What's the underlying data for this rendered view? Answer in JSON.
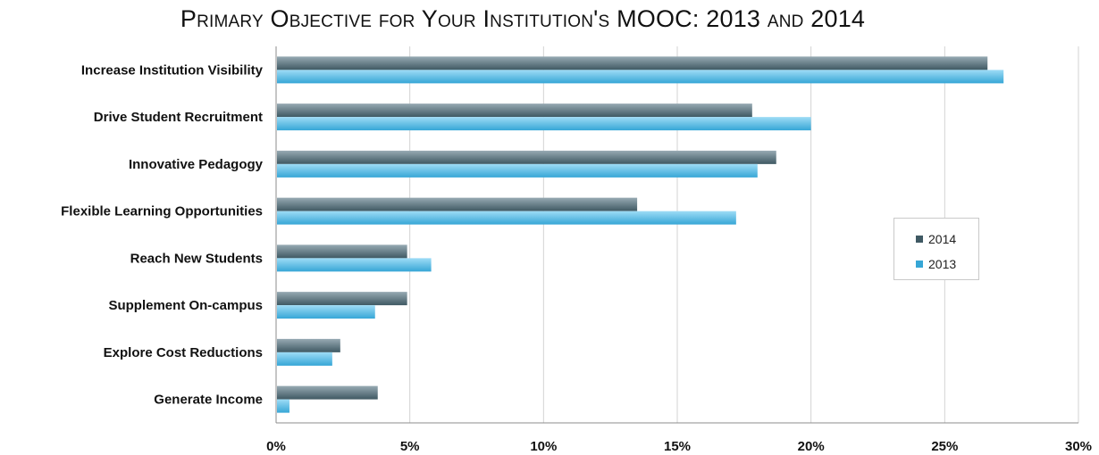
{
  "chart_data": {
    "type": "bar",
    "orientation": "horizontal",
    "title": "Primary Objective for Your Institution's MOOC: 2013 and 2014",
    "categories": [
      "Increase Institution Visibility",
      "Drive Student Recruitment",
      "Innovative Pedagogy",
      "Flexible Learning Opportunities",
      "Reach New Students",
      "Supplement On-campus",
      "Explore Cost Reductions",
      "Generate Income"
    ],
    "series": [
      {
        "name": "2014",
        "color_top": "#97aab3",
        "color_bottom": "#3f5963",
        "values": [
          26.6,
          17.8,
          18.7,
          13.5,
          4.9,
          4.9,
          2.4,
          3.8
        ]
      },
      {
        "name": "2013",
        "color_top": "#9edcf6",
        "color_bottom": "#36a6d6",
        "values": [
          27.2,
          20.0,
          18.0,
          17.2,
          5.8,
          3.7,
          2.1,
          0.5
        ]
      }
    ],
    "xlim": [
      0,
      30
    ],
    "xticks": [
      0,
      5,
      10,
      15,
      20,
      25,
      30
    ],
    "tick_format": "percent",
    "grid": "vertical",
    "legend_position": "right"
  }
}
